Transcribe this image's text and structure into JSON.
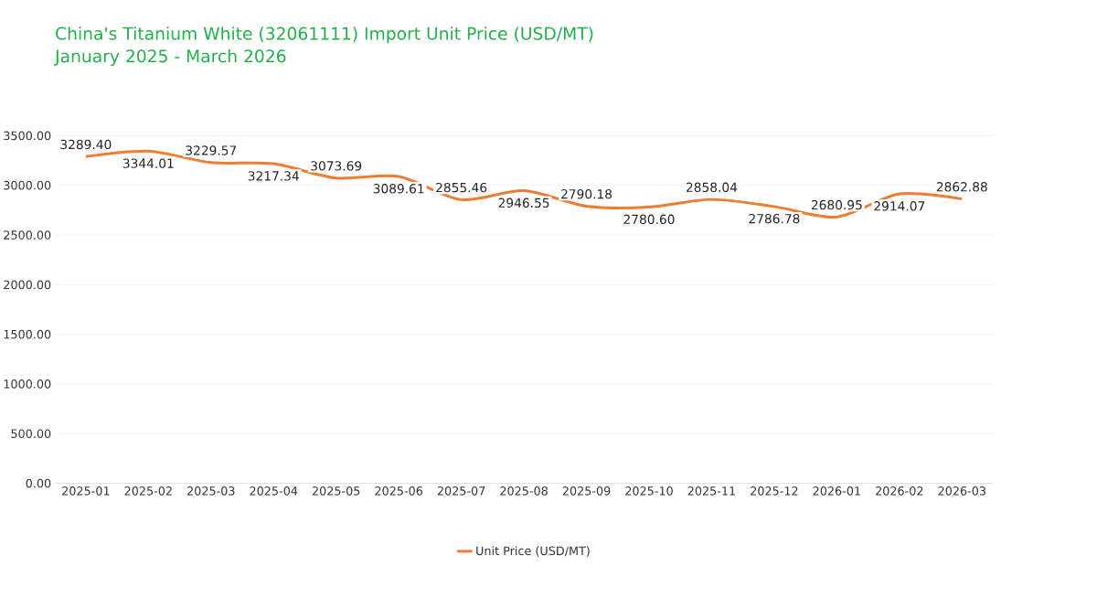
{
  "chart_data": {
    "type": "line",
    "title": "China's Titanium White (32061111) Import Unit Price (USD/MT)",
    "subtitle": "January 2025 - March 2026",
    "categories": [
      "2025-01",
      "2025-02",
      "2025-03",
      "2025-04",
      "2025-05",
      "2025-06",
      "2025-07",
      "2025-08",
      "2025-09",
      "2025-10",
      "2025-11",
      "2025-12",
      "2026-01",
      "2026-02",
      "2026-03"
    ],
    "series": [
      {
        "name": "Unit Price (USD/MT)",
        "color": "#ed7d31",
        "values": [
          3289.4,
          3344.01,
          3229.57,
          3217.34,
          3073.69,
          3089.61,
          2855.46,
          2946.55,
          2790.18,
          2780.6,
          2858.04,
          2786.78,
          2680.95,
          2914.07,
          2862.88
        ],
        "value_labels": [
          "3289.40",
          "3344.01",
          "3229.57",
          "3217.34",
          "3073.69",
          "3089.61",
          "2855.46",
          "2946.55",
          "2790.18",
          "2780.60",
          "2858.04",
          "2786.78",
          "2680.95",
          "2914.07",
          "2862.88"
        ]
      }
    ],
    "ylim": [
      0,
      3500
    ],
    "yticks": [
      {
        "value": 0,
        "label": "0.00"
      },
      {
        "value": 500,
        "label": "500.00"
      },
      {
        "value": 1000,
        "label": "1000.00"
      },
      {
        "value": 1500,
        "label": "1500.00"
      },
      {
        "value": 2000,
        "label": "2000.00"
      },
      {
        "value": 2500,
        "label": "2500.00"
      },
      {
        "value": 3000,
        "label": "3000.00"
      },
      {
        "value": 3500,
        "label": "3500.00"
      }
    ],
    "grid": "y",
    "legend": "bottom",
    "marker": "none",
    "line_style": "solid"
  }
}
